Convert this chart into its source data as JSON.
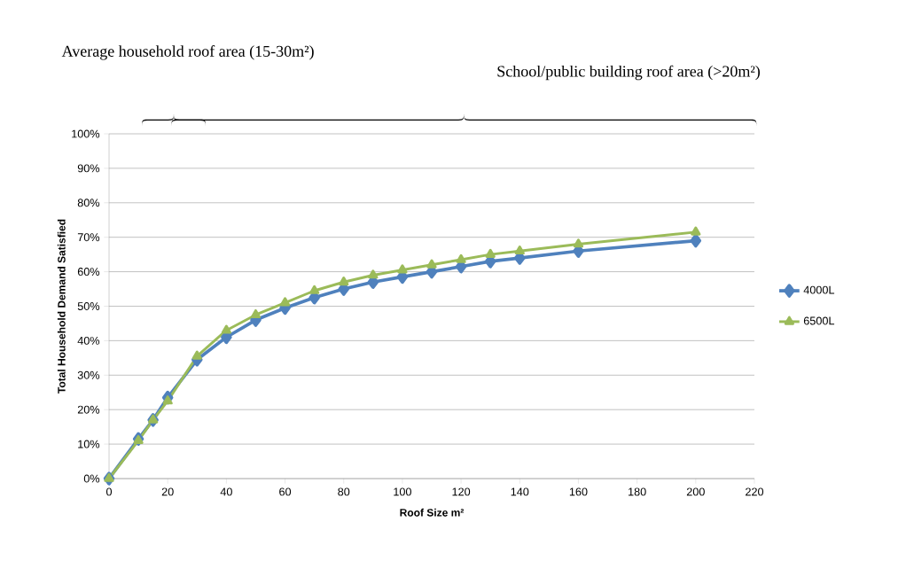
{
  "chart_data": {
    "type": "line",
    "xlabel": "Roof Size  m²",
    "ylabel": "Total Household  Demand Satisfied",
    "annotations": [
      "Average household roof area (15-30m²)",
      "School/public building roof area (>20m²)"
    ],
    "x": [
      0,
      10,
      15,
      20,
      30,
      40,
      50,
      60,
      70,
      80,
      90,
      100,
      110,
      120,
      130,
      140,
      160,
      200
    ],
    "series": [
      {
        "name": "4000L",
        "color": "#4f81bd",
        "marker": "diamond",
        "values": [
          0,
          11.5,
          17,
          23.5,
          34.5,
          41,
          46,
          49.5,
          52.5,
          55,
          57,
          58.5,
          60,
          61.5,
          63,
          64,
          66,
          69
        ]
      },
      {
        "name": "6500L",
        "color": "#9bbb59",
        "marker": "triangle",
        "values": [
          0,
          11,
          17,
          22.5,
          35.5,
          43,
          47.5,
          51,
          54.5,
          57,
          59,
          60.5,
          62,
          63.5,
          65,
          66,
          68,
          71.5
        ]
      }
    ],
    "xlim": [
      0,
      220
    ],
    "xticks": [
      0,
      20,
      40,
      60,
      80,
      100,
      120,
      140,
      160,
      180,
      200,
      220
    ],
    "ylim": [
      0,
      100
    ],
    "yticks": [
      {
        "value": 0,
        "label": "0%"
      },
      {
        "value": 10,
        "label": "10%"
      },
      {
        "value": 20,
        "label": "20%"
      },
      {
        "value": 30,
        "label": "30%"
      },
      {
        "value": 40,
        "label": "40%"
      },
      {
        "value": 50,
        "label": "50%"
      },
      {
        "value": 60,
        "label": "60%"
      },
      {
        "value": 70,
        "label": "70%"
      },
      {
        "value": 80,
        "label": "80%"
      },
      {
        "value": 90,
        "label": "90%"
      },
      {
        "value": 100,
        "label": "100%"
      }
    ],
    "grid": "y",
    "legend": "right",
    "line_style": "solid"
  }
}
